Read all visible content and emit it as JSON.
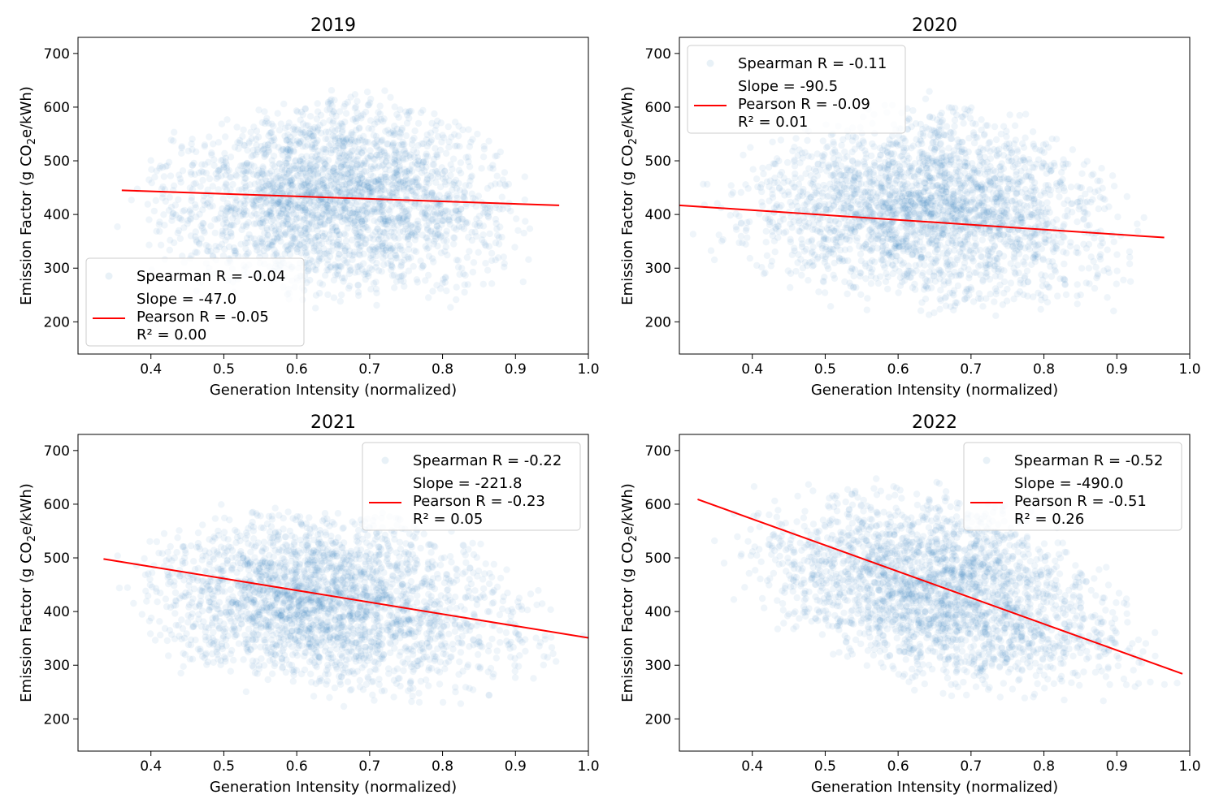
{
  "figure": {
    "colors": {
      "scatter": "#1f77b4",
      "fit_line": "#ff0000",
      "axes": "#000000",
      "legend_border": "#cccccc"
    }
  },
  "chart_data": [
    {
      "type": "scatter",
      "title": "2019",
      "xlabel": "Generation Intensity (normalized)",
      "ylabel_prefix": "Emission Factor (g CO",
      "ylabel_sub": "2",
      "ylabel_suffix": "e/kWh)",
      "xlim": [
        0.3,
        1.0
      ],
      "ylim": [
        140,
        730
      ],
      "xticks": [
        0.4,
        0.5,
        0.6,
        0.7,
        0.8,
        0.9,
        1.0
      ],
      "xtick_labels": [
        "0.4",
        "0.5",
        "0.6",
        "0.7",
        "0.8",
        "0.9",
        "1.0"
      ],
      "yticks": [
        200,
        300,
        400,
        500,
        600,
        700
      ],
      "ytick_labels": [
        "200",
        "300",
        "400",
        "500",
        "600",
        "700"
      ],
      "legend_position": "lower-left",
      "legend": {
        "scatter_label": "Spearman R = -0.04",
        "line_label_lines": [
          "Slope = -47.0",
          "Pearson R = -0.05",
          "R² = 0.00"
        ]
      },
      "fit_line": {
        "x": [
          0.36,
          0.96
        ],
        "y": [
          445,
          417
        ]
      },
      "scatter_cloud": {
        "x_range": [
          0.33,
          0.97
        ],
        "y_range_at_x_min": [
          280,
          470
        ],
        "y_range_at_x_mid": [
          160,
          710
        ],
        "y_range_at_x_max": [
          200,
          500
        ],
        "center": [
          0.66,
          440
        ]
      }
    },
    {
      "type": "scatter",
      "title": "2020",
      "xlabel": "Generation Intensity (normalized)",
      "ylabel_prefix": "Emission Factor (g CO",
      "ylabel_sub": "2",
      "ylabel_suffix": "e/kWh)",
      "xlim": [
        0.3,
        1.0
      ],
      "ylim": [
        140,
        730
      ],
      "xticks": [
        0.4,
        0.5,
        0.6,
        0.7,
        0.8,
        0.9,
        1.0
      ],
      "xtick_labels": [
        "0.4",
        "0.5",
        "0.6",
        "0.7",
        "0.8",
        "0.9",
        "1.0"
      ],
      "yticks": [
        200,
        300,
        400,
        500,
        600,
        700
      ],
      "ytick_labels": [
        "200",
        "300",
        "400",
        "500",
        "600",
        "700"
      ],
      "legend_position": "upper-left",
      "legend": {
        "scatter_label": "Spearman R = -0.11",
        "line_label_lines": [
          "Slope = -90.5",
          "Pearson R = -0.09",
          "R² = 0.01"
        ]
      },
      "fit_line": {
        "x": [
          0.3,
          0.965
        ],
        "y": [
          417,
          357
        ]
      },
      "scatter_cloud": {
        "x_range": [
          0.3,
          0.97
        ],
        "y_range_at_x_min": [
          300,
          440
        ],
        "y_range_at_x_mid": [
          150,
          700
        ],
        "y_range_at_x_max": [
          170,
          460
        ],
        "center": [
          0.65,
          400
        ]
      }
    },
    {
      "type": "scatter",
      "title": "2021",
      "xlabel": "Generation Intensity (normalized)",
      "ylabel_prefix": "Emission Factor (g CO",
      "ylabel_sub": "2",
      "ylabel_suffix": "e/kWh)",
      "xlim": [
        0.3,
        1.0
      ],
      "ylim": [
        140,
        730
      ],
      "xticks": [
        0.4,
        0.5,
        0.6,
        0.7,
        0.8,
        0.9,
        1.0
      ],
      "xtick_labels": [
        "0.4",
        "0.5",
        "0.6",
        "0.7",
        "0.8",
        "0.9",
        "1.0"
      ],
      "yticks": [
        200,
        300,
        400,
        500,
        600,
        700
      ],
      "ytick_labels": [
        "200",
        "300",
        "400",
        "500",
        "600",
        "700"
      ],
      "legend_position": "upper-right",
      "legend": {
        "scatter_label": "Spearman R = -0.22",
        "line_label_lines": [
          "Slope = -221.8",
          "Pearson R = -0.23",
          "R² = 0.05"
        ]
      },
      "fit_line": {
        "x": [
          0.335,
          1.0
        ],
        "y": [
          498,
          351
        ]
      },
      "scatter_cloud": {
        "x_range": [
          0.33,
          1.0
        ],
        "y_range_at_x_min": [
          300,
          560
        ],
        "y_range_at_x_mid": [
          170,
          660
        ],
        "y_range_at_x_max": [
          150,
          440
        ],
        "center": [
          0.62,
          440
        ]
      }
    },
    {
      "type": "scatter",
      "title": "2022",
      "xlabel": "Generation Intensity (normalized)",
      "ylabel_prefix": "Emission Factor (g CO",
      "ylabel_sub": "2",
      "ylabel_suffix": "e/kWh)",
      "xlim": [
        0.3,
        1.0
      ],
      "ylim": [
        140,
        730
      ],
      "xticks": [
        0.4,
        0.5,
        0.6,
        0.7,
        0.8,
        0.9,
        1.0
      ],
      "xtick_labels": [
        "0.4",
        "0.5",
        "0.6",
        "0.7",
        "0.8",
        "0.9",
        "1.0"
      ],
      "yticks": [
        200,
        300,
        400,
        500,
        600,
        700
      ],
      "ytick_labels": [
        "200",
        "300",
        "400",
        "500",
        "600",
        "700"
      ],
      "legend_position": "upper-right",
      "legend": {
        "scatter_label": "Spearman R = -0.52",
        "line_label_lines": [
          "Slope = -490.0",
          "Pearson R = -0.51",
          "R² = 0.26"
        ]
      },
      "fit_line": {
        "x": [
          0.325,
          0.99
        ],
        "y": [
          609,
          284
        ]
      },
      "scatter_cloud": {
        "x_range": [
          0.33,
          0.99
        ],
        "y_range_at_x_min": [
          440,
          640
        ],
        "y_range_at_x_mid": [
          180,
          700
        ],
        "y_range_at_x_max": [
          230,
          340
        ],
        "center": [
          0.66,
          430
        ]
      }
    }
  ]
}
